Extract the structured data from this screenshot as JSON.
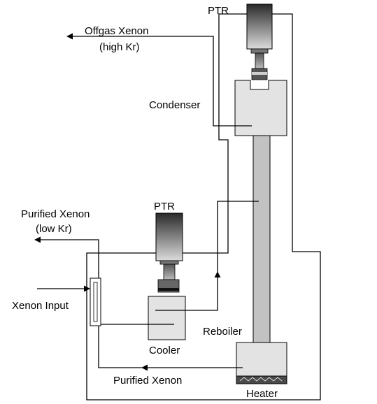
{
  "labels": {
    "ptr_top": "PTR",
    "offgas_line1": "Offgas Xenon",
    "offgas_line2": "(high Kr)",
    "condenser": "Condenser",
    "purified_top_line1": "Purified Xenon",
    "purified_top_line2": "(low Kr)",
    "ptr_bottom": "PTR",
    "xenon_input": "Xenon Input",
    "reboiler": "Reboiler",
    "cooler": "Cooler",
    "purified_bottom": "Purified Xenon",
    "heater": "Heater"
  },
  "colors": {
    "ptr_dark": "#2a2a2a",
    "ptr_light": "#d9d9d9",
    "vessel_fill": "#e3e3e3",
    "column_fill": "#c2c2c2",
    "line": "#000000"
  }
}
